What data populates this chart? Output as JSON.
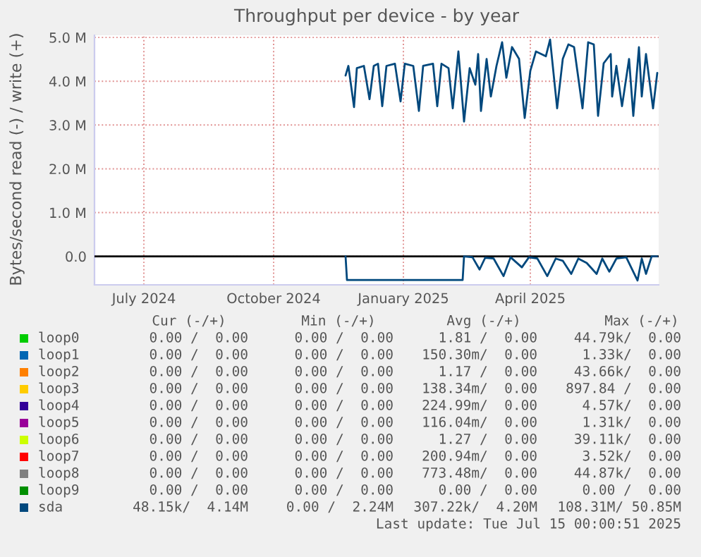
{
  "chart_data": {
    "type": "line",
    "title": "Throughput per device - by year",
    "ylabel": "Bytes/second read (-) / write (+)",
    "xlim": [
      "2024-06-10",
      "2025-07-15"
    ],
    "xticks": [
      {
        "value": "2024-07-15",
        "label": "July 2024"
      },
      {
        "value": "2024-10-15",
        "label": "October 2024"
      },
      {
        "value": "2025-01-15",
        "label": "January 2025"
      },
      {
        "value": "2025-04-15",
        "label": "April 2025"
      }
    ],
    "ylim": [
      -0.65,
      5.05
    ],
    "yticks": [
      {
        "value": 0,
        "label": "0.0"
      },
      {
        "value": 1,
        "label": "1.0 M"
      },
      {
        "value": 2,
        "label": "2.0 M"
      },
      {
        "value": 3,
        "label": "3.0 M"
      },
      {
        "value": 4,
        "label": "4.0 M"
      },
      {
        "value": 5,
        "label": "5.0 M"
      }
    ],
    "grid": true,
    "legend": "bottom",
    "ref_lines": [
      {
        "axis": "y",
        "value": 0,
        "color": "#000000"
      }
    ],
    "series": [
      {
        "name": "loop0",
        "color": "#00cc00"
      },
      {
        "name": "loop1",
        "color": "#0066b3"
      },
      {
        "name": "loop2",
        "color": "#ff8000"
      },
      {
        "name": "loop3",
        "color": "#ffcc00"
      },
      {
        "name": "loop4",
        "color": "#330099"
      },
      {
        "name": "loop5",
        "color": "#990099"
      },
      {
        "name": "loop6",
        "color": "#ccff00"
      },
      {
        "name": "loop7",
        "color": "#ff0000"
      },
      {
        "name": "loop8",
        "color": "#808080"
      },
      {
        "name": "loop9",
        "color": "#008f00"
      },
      {
        "name": "sda",
        "color": "#00487d",
        "x": [
          "2024-12-05",
          "2024-12-07",
          "2024-12-11",
          "2024-12-13",
          "2024-12-18",
          "2024-12-22",
          "2024-12-25",
          "2024-12-28",
          "2024-12-31",
          "2025-01-03",
          "2025-01-09",
          "2025-01-13",
          "2025-01-16",
          "2025-01-22",
          "2025-01-26",
          "2025-01-29",
          "2025-02-05",
          "2025-02-08",
          "2025-02-11",
          "2025-02-16",
          "2025-02-19",
          "2025-02-23",
          "2025-02-27",
          "2025-03-03",
          "2025-03-07",
          "2025-03-09",
          "2025-03-11",
          "2025-03-15",
          "2025-03-18",
          "2025-03-22",
          "2025-03-26",
          "2025-03-29",
          "2025-04-02",
          "2025-04-07",
          "2025-04-11",
          "2025-04-15",
          "2025-04-19",
          "2025-04-26",
          "2025-04-29",
          "2025-05-04",
          "2025-05-08",
          "2025-05-12",
          "2025-05-16",
          "2025-05-22",
          "2025-05-26",
          "2025-05-30",
          "2025-06-02",
          "2025-06-06",
          "2025-06-11",
          "2025-06-12",
          "2025-06-15",
          "2025-06-19",
          "2025-06-24",
          "2025-06-27",
          "2025-07-01",
          "2025-07-03",
          "2025-07-06",
          "2025-07-11",
          "2025-07-14"
        ],
        "values": [
          4.13,
          4.35,
          3.41,
          4.3,
          4.35,
          3.59,
          4.35,
          4.4,
          3.43,
          4.35,
          4.4,
          3.54,
          4.4,
          4.35,
          3.32,
          4.35,
          4.4,
          3.43,
          4.4,
          4.3,
          3.38,
          4.68,
          3.08,
          4.3,
          3.92,
          4.62,
          3.32,
          4.51,
          3.65,
          4.35,
          4.89,
          4.08,
          4.78,
          4.51,
          3.16,
          4.24,
          4.68,
          4.57,
          4.95,
          3.38,
          4.51,
          4.84,
          4.78,
          3.38,
          4.89,
          4.84,
          3.21,
          4.41,
          4.62,
          3.65,
          4.35,
          3.43,
          4.51,
          3.21,
          4.78,
          3.65,
          4.62,
          3.38,
          4.19
        ]
      },
      {
        "color": "#00487d",
        "x": [
          "2024-12-05",
          "2024-12-06",
          "2025-02-26",
          "2025-02-27",
          "2025-03-05",
          "2025-03-10",
          "2025-03-14",
          "2025-03-20",
          "2025-03-27",
          "2025-04-01",
          "2025-04-09",
          "2025-04-14",
          "2025-04-20",
          "2025-04-27",
          "2025-05-03",
          "2025-05-08",
          "2025-05-14",
          "2025-05-19",
          "2025-05-25",
          "2025-06-01",
          "2025-06-05",
          "2025-06-10",
          "2025-06-15",
          "2025-06-22",
          "2025-06-30",
          "2025-07-03",
          "2025-07-06",
          "2025-07-10",
          "2025-07-14"
        ],
        "values": [
          0,
          -0.54,
          -0.54,
          0,
          -0.02,
          -0.3,
          -0.03,
          -0.05,
          -0.45,
          -0.02,
          -0.25,
          -0.02,
          -0.05,
          -0.45,
          -0.05,
          -0.1,
          -0.4,
          -0.05,
          -0.15,
          -0.4,
          -0.05,
          -0.35,
          -0.05,
          -0.02,
          -0.55,
          -0.05,
          -0.4,
          0,
          0
        ]
      }
    ],
    "annotations": [
      "Cur (-/+)",
      "Min (-/+)",
      "Avg (-/+)",
      "Max (-/+)",
      "0.00 /  0.00",
      "0.00 /  0.00",
      "1.81 /  0.00",
      "44.79k/  0.00",
      "0.00 /  0.00",
      "0.00 /  0.00",
      "150.30m/  0.00",
      "1.33k/  0.00",
      "0.00 /  0.00",
      "0.00 /  0.00",
      "1.17 /  0.00",
      "43.66k/  0.00",
      "0.00 /  0.00",
      "0.00 /  0.00",
      "138.34m/  0.00",
      "897.84 /  0.00",
      "0.00 /  0.00",
      "0.00 /  0.00",
      "224.99m/  0.00",
      "4.57k/  0.00",
      "0.00 /  0.00",
      "0.00 /  0.00",
      "116.04m/  0.00",
      "1.31k/  0.00",
      "0.00 /  0.00",
      "0.00 /  0.00",
      "1.27 /  0.00",
      "39.11k/  0.00",
      "0.00 /  0.00",
      "0.00 /  0.00",
      "200.94m/  0.00",
      "3.52k/  0.00",
      "0.00 /  0.00",
      "0.00 /  0.00",
      "773.48m/  0.00",
      "44.87k/  0.00",
      "0.00 /  0.00",
      "0.00 /  0.00",
      "0.00 /  0.00",
      "0.00 /  0.00",
      "48.15k/  4.14M",
      "0.00 /  2.24M",
      "307.22k/  4.20M",
      "108.31M/ 50.85M",
      "Last update: Tue Jul 15 00:00:51 2025"
    ]
  }
}
